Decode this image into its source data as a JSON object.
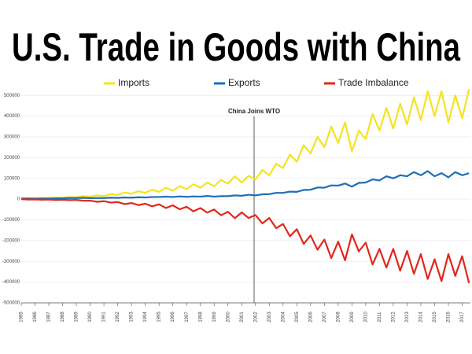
{
  "chart_data": {
    "type": "line",
    "title": "U.S. Trade in Goods with China",
    "annotation": {
      "text": "China Joins WTO",
      "x": 2001.9
    },
    "x": [
      1985,
      1985.5,
      1986,
      1986.5,
      1987,
      1987.5,
      1988,
      1988.5,
      1989,
      1989.5,
      1990,
      1990.5,
      1991,
      1991.5,
      1992,
      1992.5,
      1993,
      1993.5,
      1994,
      1994.5,
      1995,
      1995.5,
      1996,
      1996.5,
      1997,
      1997.5,
      1998,
      1998.5,
      1999,
      1999.5,
      2000,
      2000.5,
      2001,
      2001.5,
      2002,
      2002.5,
      2003,
      2003.5,
      2004,
      2004.5,
      2005,
      2005.5,
      2006,
      2006.5,
      2007,
      2007.5,
      2008,
      2008.5,
      2009,
      2009.5,
      2010,
      2010.5,
      2011,
      2011.5,
      2012,
      2012.5,
      2013,
      2013.5,
      2014,
      2014.5,
      2015,
      2015.5,
      2016,
      2016.5,
      2017,
      2017.5
    ],
    "series": [
      {
        "name": "Imports",
        "color": "#f5e31f",
        "values": [
          3000,
          5000,
          4000,
          6000,
          5000,
          8000,
          7000,
          10000,
          9000,
          14000,
          12000,
          18000,
          15000,
          24000,
          20000,
          32000,
          26000,
          38000,
          30000,
          45000,
          35000,
          55000,
          40000,
          62000,
          48000,
          72000,
          55000,
          80000,
          62000,
          92000,
          75000,
          110000,
          80000,
          112000,
          95000,
          140000,
          115000,
          170000,
          150000,
          215000,
          180000,
          260000,
          220000,
          300000,
          250000,
          350000,
          270000,
          370000,
          230000,
          330000,
          290000,
          410000,
          330000,
          440000,
          340000,
          460000,
          360000,
          490000,
          380000,
          520000,
          400000,
          520000,
          370000,
          500000,
          390000,
          530000
        ]
      },
      {
        "name": "Exports",
        "color": "#1f6fb5",
        "values": [
          3000,
          3000,
          2500,
          3000,
          3000,
          3500,
          4000,
          5000,
          5000,
          6000,
          4500,
          5000,
          5000,
          7000,
          6000,
          8000,
          7000,
          9000,
          8000,
          10000,
          10000,
          12000,
          10000,
          13000,
          11000,
          13000,
          12000,
          15000,
          12000,
          14000,
          14000,
          18000,
          16000,
          21000,
          18000,
          23000,
          24000,
          30000,
          30000,
          36000,
          35000,
          44000,
          45000,
          56000,
          55000,
          66000,
          65000,
          75000,
          60000,
          78000,
          80000,
          95000,
          90000,
          110000,
          100000,
          115000,
          110000,
          130000,
          115000,
          135000,
          110000,
          125000,
          105000,
          130000,
          115000,
          125000
        ]
      },
      {
        "name": "Trade Imbalance",
        "color": "#e3261b",
        "values": [
          0,
          -2000,
          -1500,
          -3000,
          -2000,
          -4500,
          -3000,
          -5000,
          -4000,
          -8000,
          -7500,
          -13000,
          -10000,
          -17000,
          -14000,
          -24000,
          -19000,
          -29000,
          -22000,
          -35000,
          -25000,
          -43000,
          -30000,
          -49000,
          -37000,
          -59000,
          -43000,
          -65000,
          -50000,
          -78000,
          -61000,
          -92000,
          -64000,
          -91000,
          -77000,
          -117000,
          -91000,
          -140000,
          -120000,
          -179000,
          -145000,
          -216000,
          -175000,
          -244000,
          -195000,
          -284000,
          -205000,
          -295000,
          -170000,
          -252000,
          -210000,
          -315000,
          -240000,
          -330000,
          -240000,
          -345000,
          -250000,
          -360000,
          -265000,
          -385000,
          -290000,
          -395000,
          -265000,
          -370000,
          -275000,
          -405000
        ]
      }
    ],
    "xlim": [
      1985,
      2017.6
    ],
    "xticks": [
      1985,
      1986,
      1987,
      1988,
      1989,
      1990,
      1991,
      1992,
      1993,
      1994,
      1995,
      1996,
      1997,
      1998,
      1999,
      2000,
      2001,
      2002,
      2003,
      2004,
      2005,
      2006,
      2007,
      2008,
      2009,
      2010,
      2011,
      2012,
      2013,
      2014,
      2015,
      2016,
      2017
    ],
    "ylim": [
      -500000,
      550000
    ],
    "yticks": [
      -500000,
      -400000,
      -300000,
      -200000,
      -100000,
      0,
      100000,
      200000,
      300000,
      400000,
      500000
    ],
    "grid": true
  }
}
